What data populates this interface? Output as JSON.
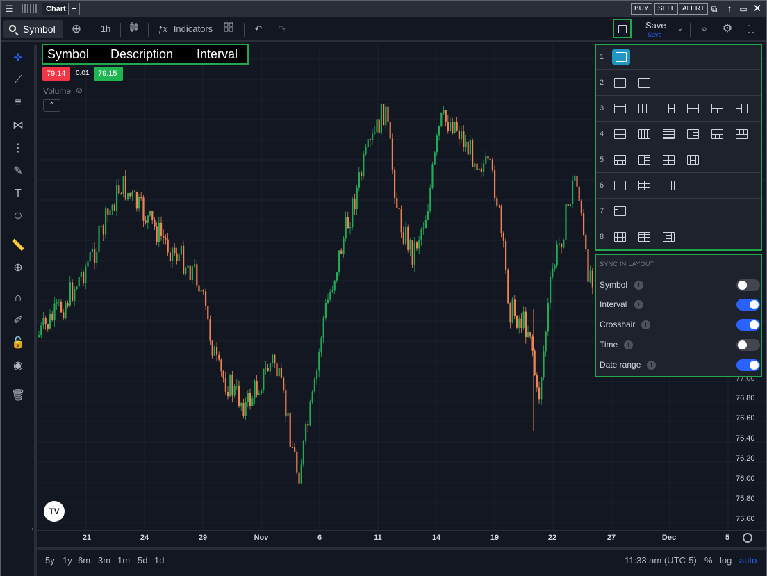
{
  "window": {
    "tab": "Chart",
    "add_tab": "+",
    "buttons": [
      "BUY",
      "SELL",
      "ALERT"
    ]
  },
  "toolbar": {
    "symbol": "Symbol",
    "interval": "1h",
    "indicators": "Indicators",
    "save": "Save",
    "save_sub": "Save"
  },
  "legend": {
    "symbol": "Symbol",
    "description": "Description",
    "interval": "Interval"
  },
  "quote": {
    "bid": "79.14",
    "spread": "0.01",
    "ask": "79.15",
    "bid_color": "#f23645",
    "ask_color": "#1fb651"
  },
  "volume_label": "Volume",
  "price_axis": [
    "76.80",
    "76.60",
    "76.40",
    "76.20",
    "76.00",
    "75.80",
    "75.60"
  ],
  "price_axis_partial": "77.00",
  "time_axis": [
    "21",
    "24",
    "29",
    "Nov",
    "6",
    "11",
    "14",
    "19",
    "22",
    "27",
    "Dec",
    "5"
  ],
  "ranges": [
    "5y",
    "1y",
    "6m",
    "3m",
    "1m",
    "5d",
    "1d"
  ],
  "footer": {
    "time": "11:33 am (UTC-5)",
    "percent": "%",
    "log": "log",
    "auto": "auto"
  },
  "layout_panel": {
    "rows": [
      "1",
      "2",
      "3",
      "4",
      "5",
      "6",
      "7",
      "8"
    ]
  },
  "sync": {
    "title": "SYNC IN LAYOUT",
    "items": [
      {
        "label": "Symbol",
        "on": false
      },
      {
        "label": "Interval",
        "on": true
      },
      {
        "label": "Crosshair",
        "on": true
      },
      {
        "label": "Time",
        "on": false
      },
      {
        "label": "Date range",
        "on": true
      }
    ]
  },
  "colors": {
    "up": "#22ab54",
    "down": "#ef8354",
    "highlight": "#22a84a",
    "accent": "#2962ff"
  }
}
